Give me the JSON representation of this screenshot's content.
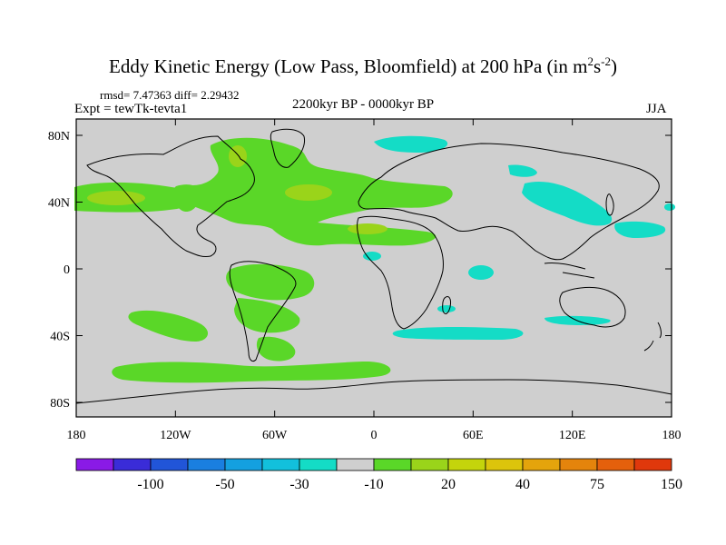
{
  "title": {
    "main": "Eddy Kinetic Energy (Low Pass, Bloomfield) at 200 hPa (in m",
    "sup1": "2",
    "mid": "s",
    "sup2": "-2",
    "end": ")"
  },
  "stats": "rmsd= 7.47363 diff= 2.29432",
  "expt": "Expt = tewTk-tevta1",
  "period": "2200kyr BP - 0000kyr BP",
  "season": "JJA",
  "axes": {
    "x_ticks": [
      "180",
      "120W",
      "60W",
      "0",
      "60E",
      "120E",
      "180"
    ],
    "y_ticks": [
      "80N",
      "40N",
      "0",
      "40S",
      "80S"
    ]
  },
  "colorbar": {
    "colors": [
      "#8a1ae6",
      "#3a2cd8",
      "#2155d8",
      "#1a7fe0",
      "#14a0e0",
      "#12c0dc",
      "#14dcc6",
      "#cfcfcf",
      "#5ad728",
      "#9ad41a",
      "#c4d40c",
      "#dcc40c",
      "#e4a40c",
      "#e4840c",
      "#e4600c",
      "#e0380c"
    ],
    "labels": [
      "-100",
      "-50",
      "-30",
      "-10",
      "20",
      "40",
      "75",
      "150"
    ]
  },
  "colors": {
    "background": "#cfcfcf",
    "green": "#5ad728",
    "yellow_green": "#9ad41a",
    "cyan": "#14dcc6",
    "coast": "#000000"
  }
}
